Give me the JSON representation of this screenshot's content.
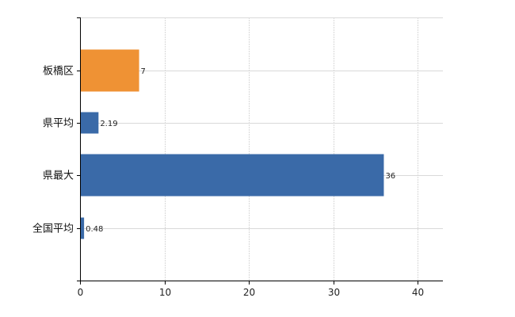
{
  "chart_data": {
    "type": "bar",
    "orientation": "horizontal",
    "categories": [
      "板橋区",
      "県平均",
      "県最大",
      "全国平均"
    ],
    "values": [
      7,
      2.19,
      36,
      0.48
    ],
    "data_labels": [
      "7",
      "2.19",
      "36",
      "0.48"
    ],
    "colors": [
      "#ef9234",
      "#3a6aa8",
      "#3a6aa8",
      "#3a6aa8"
    ],
    "x_ticks": [
      0,
      10,
      20,
      30,
      40
    ],
    "x_tick_labels": [
      "0",
      "10",
      "20",
      "30",
      "40"
    ],
    "xlim": [
      0,
      43
    ],
    "grid": true,
    "title": "",
    "xlabel": "",
    "ylabel": ""
  }
}
